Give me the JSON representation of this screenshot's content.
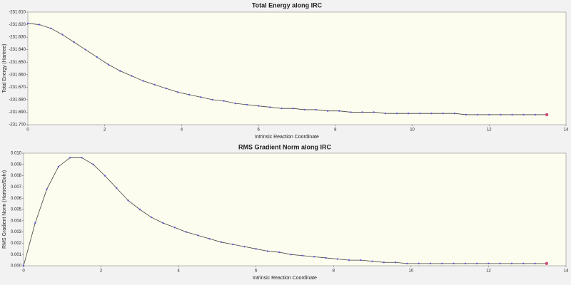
{
  "chart_data": [
    {
      "type": "line",
      "title": "Total Energy along IRC",
      "xlabel": "Intrinsic Reaction Coordinate",
      "ylabel": "Total Energy (Hartree)",
      "x": [
        0,
        0.3,
        0.6,
        0.9,
        1.2,
        1.5,
        1.8,
        2.1,
        2.4,
        2.7,
        3.0,
        3.3,
        3.6,
        3.9,
        4.2,
        4.5,
        4.8,
        5.1,
        5.4,
        5.7,
        6.0,
        6.3,
        6.6,
        6.9,
        7.2,
        7.5,
        7.8,
        8.1,
        8.4,
        8.7,
        9.0,
        9.3,
        9.6,
        9.9,
        10.2,
        10.5,
        10.8,
        11.1,
        11.4,
        11.7,
        12.0,
        12.3,
        12.6,
        12.9,
        13.2,
        13.5
      ],
      "values": [
        -231.619,
        -231.62,
        -231.623,
        -231.628,
        -231.634,
        -231.64,
        -231.646,
        -231.652,
        -231.657,
        -231.661,
        -231.665,
        -231.668,
        -231.671,
        -231.674,
        -231.676,
        -231.678,
        -231.68,
        -231.681,
        -231.683,
        -231.684,
        -231.685,
        -231.686,
        -231.687,
        -231.687,
        -231.688,
        -231.688,
        -231.689,
        -231.689,
        -231.69,
        -231.69,
        -231.69,
        -231.691,
        -231.691,
        -231.691,
        -231.691,
        -231.691,
        -231.691,
        -231.691,
        -231.692,
        -231.692,
        -231.692,
        -231.692,
        -231.692,
        -231.692,
        -231.692,
        -231.692
      ],
      "color": "#404040",
      "marker_color": "#5a5ad8",
      "last_point_color": "#d04a7a",
      "xlim": [
        0,
        14
      ],
      "xticks": [
        0,
        2,
        4,
        6,
        8,
        10,
        12,
        14
      ],
      "ylim": [
        -231.7,
        -231.61
      ],
      "yticks": [
        {
          "value": -231.61,
          "label": "-231.610"
        },
        {
          "value": -231.62,
          "label": "-231.620"
        },
        {
          "value": -231.63,
          "label": "-231.630"
        },
        {
          "value": -231.64,
          "label": "-231.640"
        },
        {
          "value": -231.65,
          "label": "-231.650"
        },
        {
          "value": -231.66,
          "label": "-231.660"
        },
        {
          "value": -231.67,
          "label": "-231.670"
        },
        {
          "value": -231.68,
          "label": "-231.680"
        },
        {
          "value": -231.69,
          "label": "-231.690"
        },
        {
          "value": -231.7,
          "label": "-231.700"
        }
      ]
    },
    {
      "type": "line",
      "title": "RMS Gradient Norm along IRC",
      "xlabel": "Intrinsic Reaction Coordinate",
      "ylabel": "RMS Gradient Norm (Hartree/Bohr)",
      "x": [
        0,
        0.3,
        0.6,
        0.9,
        1.2,
        1.5,
        1.8,
        2.1,
        2.4,
        2.7,
        3.0,
        3.3,
        3.6,
        3.9,
        4.2,
        4.5,
        4.8,
        5.1,
        5.4,
        5.7,
        6.0,
        6.3,
        6.6,
        6.9,
        7.2,
        7.5,
        7.8,
        8.1,
        8.4,
        8.7,
        9.0,
        9.3,
        9.6,
        9.9,
        10.2,
        10.5,
        10.8,
        11.1,
        11.4,
        11.7,
        12.0,
        12.3,
        12.6,
        12.9,
        13.2,
        13.5
      ],
      "values": [
        0.0,
        0.0038,
        0.0068,
        0.0088,
        0.0096,
        0.0096,
        0.009,
        0.008,
        0.0069,
        0.0058,
        0.005,
        0.0043,
        0.0038,
        0.0034,
        0.003,
        0.0027,
        0.0024,
        0.0021,
        0.0019,
        0.0017,
        0.0015,
        0.0013,
        0.0012,
        0.001,
        0.0009,
        0.0008,
        0.0007,
        0.0006,
        0.0005,
        0.0005,
        0.0004,
        0.0003,
        0.0003,
        0.0002,
        0.0002,
        0.0002,
        0.0002,
        0.0002,
        0.0002,
        0.0002,
        0.0002,
        0.0002,
        0.0002,
        0.0002,
        0.0002,
        0.0002
      ],
      "color": "#404040",
      "marker_color": "#5a5ad8",
      "last_point_color": "#d04a7a",
      "xlim": [
        0,
        14
      ],
      "xticks": [
        0,
        2,
        4,
        6,
        8,
        10,
        12,
        14
      ],
      "ylim": [
        0,
        0.01
      ],
      "yticks": [
        {
          "value": 0,
          "label": "0.000"
        },
        {
          "value": 0.001,
          "label": "0.001"
        },
        {
          "value": 0.002,
          "label": "0.002"
        },
        {
          "value": 0.003,
          "label": "0.003"
        },
        {
          "value": 0.004,
          "label": "0.004"
        },
        {
          "value": 0.005,
          "label": "0.005"
        },
        {
          "value": 0.006,
          "label": "0.006"
        },
        {
          "value": 0.007,
          "label": "0.007"
        },
        {
          "value": 0.008,
          "label": "0.008"
        },
        {
          "value": 0.009,
          "label": "0.009"
        },
        {
          "value": 0.01,
          "label": "0.010"
        }
      ]
    }
  ]
}
